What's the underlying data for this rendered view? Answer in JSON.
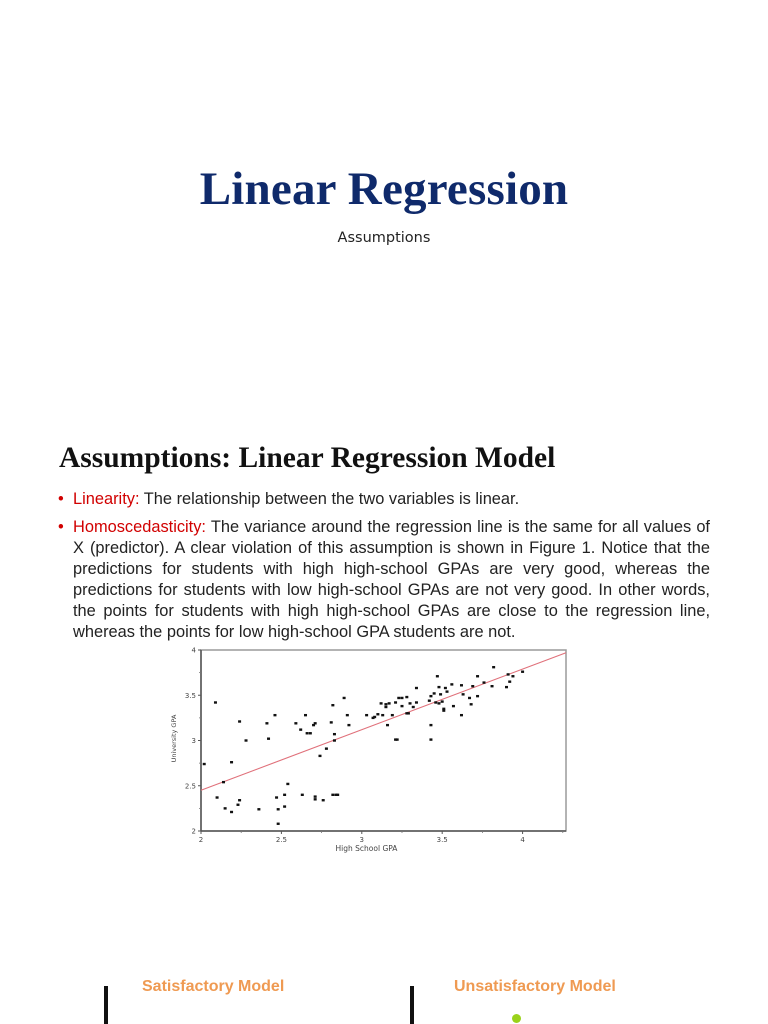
{
  "title_slide": {
    "title": "Linear Regression",
    "subtitle": "Assumptions"
  },
  "section": {
    "title": "Assumptions: Linear Regression Model",
    "bullets": [
      {
        "term": "Linearity:",
        "text": " The relationship between the two variables is linear."
      },
      {
        "term": "Homoscedasticity:",
        "text": " The variance around the regression line is the same for all values of X (predictor). A clear violation of this assumption is shown in Figure 1. Notice that the predictions for students with high high-school GPAs are very good, whereas the predictions for students with low high-school GPAs are not very good. In other words, the points for students with high high-school GPAs are close to the regression line, whereas the points for low high-school GPA students are not."
      }
    ],
    "bullet_color": "#d10000"
  },
  "chart_data": {
    "type": "scatter",
    "title": "",
    "xlabel": "High School GPA",
    "ylabel": "University GPA",
    "xlim": [
      2,
      4.27
    ],
    "ylim": [
      2,
      4
    ],
    "xticks": [
      "2",
      "2.5",
      "3",
      "3.5",
      "4"
    ],
    "yticks": [
      "2",
      "2.5",
      "3",
      "3.5",
      "4"
    ],
    "grid": false,
    "legend": null,
    "regression_line": {
      "x": [
        2,
        4.27
      ],
      "y": [
        2.45,
        3.97
      ],
      "color": "#e0707a"
    },
    "point_color": "#111111",
    "points": [
      [
        2.02,
        2.74
      ],
      [
        2.09,
        3.42
      ],
      [
        2.1,
        2.37
      ],
      [
        2.14,
        2.54
      ],
      [
        2.15,
        2.25
      ],
      [
        2.19,
        2.76
      ],
      [
        2.19,
        2.21
      ],
      [
        2.23,
        2.29
      ],
      [
        2.24,
        2.34
      ],
      [
        2.24,
        3.21
      ],
      [
        2.28,
        3.0
      ],
      [
        2.36,
        2.24
      ],
      [
        2.41,
        3.19
      ],
      [
        2.42,
        3.02
      ],
      [
        2.46,
        3.28
      ],
      [
        2.47,
        2.37
      ],
      [
        2.48,
        2.24
      ],
      [
        2.48,
        2.08
      ],
      [
        2.52,
        2.4
      ],
      [
        2.52,
        2.27
      ],
      [
        2.54,
        2.52
      ],
      [
        2.59,
        3.19
      ],
      [
        2.62,
        3.12
      ],
      [
        2.63,
        2.4
      ],
      [
        2.65,
        3.28
      ],
      [
        2.66,
        3.08
      ],
      [
        2.68,
        3.08
      ],
      [
        2.7,
        3.17
      ],
      [
        2.71,
        3.19
      ],
      [
        2.71,
        2.38
      ],
      [
        2.71,
        2.35
      ],
      [
        2.74,
        2.83
      ],
      [
        2.76,
        2.34
      ],
      [
        2.78,
        2.91
      ],
      [
        2.81,
        3.2
      ],
      [
        2.82,
        2.4
      ],
      [
        2.82,
        3.39
      ],
      [
        2.83,
        3.07
      ],
      [
        2.83,
        3.0
      ],
      [
        2.84,
        2.4
      ],
      [
        2.85,
        2.4
      ],
      [
        2.89,
        3.47
      ],
      [
        2.91,
        3.28
      ],
      [
        2.92,
        3.17
      ],
      [
        3.03,
        3.28
      ],
      [
        3.07,
        3.25
      ],
      [
        3.08,
        3.26
      ],
      [
        3.1,
        3.29
      ],
      [
        3.12,
        3.41
      ],
      [
        3.13,
        3.28
      ],
      [
        3.15,
        3.37
      ],
      [
        3.15,
        3.4
      ],
      [
        3.16,
        3.17
      ],
      [
        3.17,
        3.41
      ],
      [
        3.19,
        3.28
      ],
      [
        3.21,
        3.42
      ],
      [
        3.21,
        3.01
      ],
      [
        3.22,
        3.01
      ],
      [
        3.23,
        3.47
      ],
      [
        3.25,
        3.47
      ],
      [
        3.25,
        3.38
      ],
      [
        3.28,
        3.48
      ],
      [
        3.28,
        3.3
      ],
      [
        3.29,
        3.3
      ],
      [
        3.3,
        3.41
      ],
      [
        3.32,
        3.37
      ],
      [
        3.34,
        3.42
      ],
      [
        3.34,
        3.58
      ],
      [
        3.42,
        3.44
      ],
      [
        3.43,
        3.49
      ],
      [
        3.43,
        3.17
      ],
      [
        3.43,
        3.01
      ],
      [
        3.45,
        3.52
      ],
      [
        3.46,
        3.42
      ],
      [
        3.47,
        3.71
      ],
      [
        3.48,
        3.41
      ],
      [
        3.48,
        3.59
      ],
      [
        3.49,
        3.51
      ],
      [
        3.5,
        3.43
      ],
      [
        3.51,
        3.35
      ],
      [
        3.51,
        3.33
      ],
      [
        3.52,
        3.58
      ],
      [
        3.53,
        3.54
      ],
      [
        3.56,
        3.62
      ],
      [
        3.57,
        3.38
      ],
      [
        3.62,
        3.61
      ],
      [
        3.62,
        3.28
      ],
      [
        3.63,
        3.51
      ],
      [
        3.67,
        3.47
      ],
      [
        3.68,
        3.4
      ],
      [
        3.69,
        3.6
      ],
      [
        3.72,
        3.71
      ],
      [
        3.72,
        3.49
      ],
      [
        3.76,
        3.64
      ],
      [
        3.81,
        3.6
      ],
      [
        3.82,
        3.81
      ],
      [
        3.9,
        3.59
      ],
      [
        3.91,
        3.73
      ],
      [
        3.92,
        3.65
      ],
      [
        3.94,
        3.71
      ],
      [
        4.0,
        3.76
      ]
    ]
  },
  "bottom": {
    "left_label": "Satisfactory Model",
    "right_label": "Unsatisfactory Model",
    "label_color": "#ef9a52"
  }
}
